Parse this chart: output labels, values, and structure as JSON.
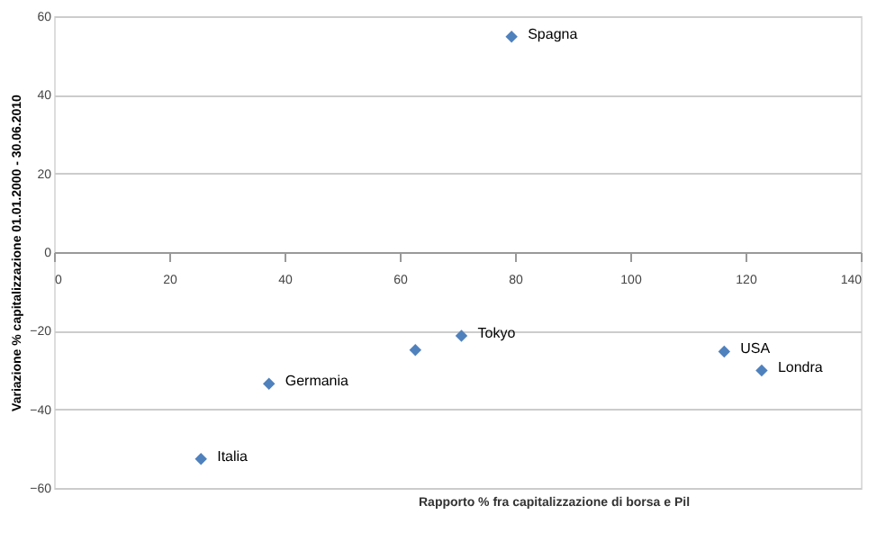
{
  "chart_data": {
    "type": "scatter",
    "xlabel": "Rapporto % fra capitalizzazione  di borsa e Pil",
    "ylabel": "Variazione % capitalizzazione  01.01.2000 - 30.06.2010",
    "x": [
      25.5,
      37.3,
      62.7,
      70.7,
      79.4,
      116.3,
      122.8
    ],
    "series": [
      {
        "color": "#4f81bd",
        "values": [
          -52.6,
          -33.5,
          -24.9,
          -21.3,
          54.8,
          -25.3,
          -30.1
        ]
      }
    ],
    "xlim": [
      0,
      140
    ],
    "xticks": [
      0,
      20,
      40,
      60,
      80,
      100,
      120,
      140
    ],
    "ylim": [
      -60,
      60
    ],
    "yticks": [
      -60,
      -40,
      -20,
      0,
      20,
      40,
      60
    ],
    "grid": "y",
    "marker": "diamond",
    "annotations": [
      {
        "text": "Italia",
        "x": 25.5,
        "y": -52.6
      },
      {
        "text": "Germania",
        "x": 37.3,
        "y": -33.5
      },
      {
        "text": "Tokyo",
        "x": 70.7,
        "y": -21.3
      },
      {
        "text": "Spagna",
        "x": 79.4,
        "y": 54.8
      },
      {
        "text": "USA",
        "x": 116.3,
        "y": -25.3
      },
      {
        "text": "Londra",
        "x": 122.8,
        "y": -30.1
      }
    ]
  }
}
